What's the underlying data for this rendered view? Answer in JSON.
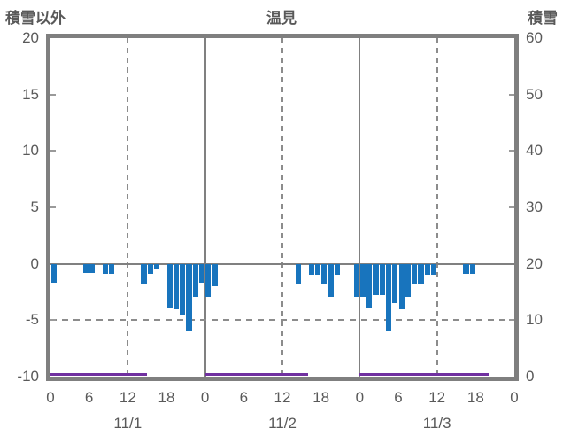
{
  "header": {
    "left_axis_title": "積雪以外",
    "title": "温見",
    "right_axis_title": "積雪"
  },
  "colors": {
    "bar_blue": "#1874bd",
    "snow_line_purple": "#7030a0",
    "frame_gray": "#7f7f7f",
    "grid_gray": "#8c8c8c",
    "text_gray": "#595959"
  },
  "chart_data": {
    "type": "bar",
    "title": "温見",
    "left_axis": {
      "title": "積雪以外",
      "min": -10,
      "max": 20,
      "tick_values": [
        20,
        15,
        10,
        5,
        0,
        -5,
        -10
      ],
      "tick_labels": [
        "20",
        "15",
        "10",
        "5",
        "0",
        "-5",
        "-10"
      ]
    },
    "right_axis": {
      "title": "積雪",
      "min": 0,
      "max": 60,
      "tick_values": [
        60,
        50,
        40,
        30,
        20,
        10,
        0
      ],
      "tick_labels": [
        "60",
        "50",
        "40",
        "30",
        "20",
        "10",
        "0"
      ]
    },
    "x_axis": {
      "total_hours": 72,
      "hour_tick_step": 6,
      "hour_tick_labels": [
        "0",
        "6",
        "12",
        "18",
        "0",
        "6",
        "12",
        "18",
        "0",
        "6",
        "12",
        "18",
        "0"
      ],
      "day_labels": [
        "11/1",
        "11/2",
        "11/3"
      ],
      "solid_grid_hours": [
        24,
        48
      ],
      "dashed_grid_hours": [
        12,
        36,
        60
      ]
    },
    "grid": {
      "zero_line_value": 0,
      "dashed_line_value": -5
    },
    "bars_hourly": {
      "axis": "left",
      "values": [
        -1.7,
        null,
        null,
        null,
        null,
        -0.8,
        -0.8,
        null,
        -0.9,
        -0.9,
        null,
        null,
        null,
        null,
        -1.8,
        -0.9,
        -0.5,
        null,
        -3.9,
        -4.0,
        -4.6,
        -5.9,
        -2.9,
        -1.7,
        -2.9,
        -2.0,
        null,
        null,
        null,
        null,
        null,
        null,
        null,
        null,
        null,
        null,
        null,
        null,
        -1.8,
        null,
        -1.0,
        -1.0,
        -1.8,
        -2.9,
        -1.0,
        null,
        null,
        -2.9,
        -2.9,
        -3.9,
        -2.8,
        -2.8,
        -5.9,
        -3.5,
        -4.0,
        -2.9,
        -1.8,
        -1.8,
        -1.0,
        -1.0,
        null,
        null,
        null,
        null,
        -0.9,
        -0.9,
        null,
        null,
        null,
        null,
        null,
        null
      ]
    },
    "snow_line": {
      "axis": "right",
      "value": 0,
      "segments_hours": [
        [
          0,
          15
        ],
        [
          24,
          40
        ],
        [
          48,
          68
        ]
      ]
    }
  }
}
